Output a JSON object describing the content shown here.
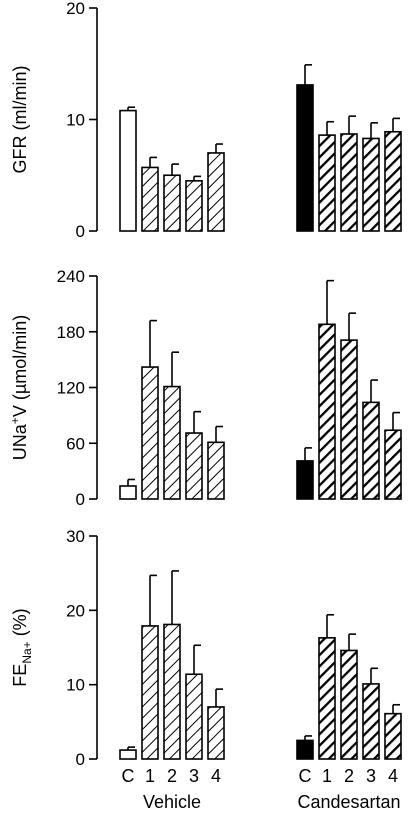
{
  "colors": {
    "axis": "#000000",
    "filled": "#000000",
    "open": "#ffffff"
  },
  "chart_data": {
    "type": "bar",
    "categories": [
      "C",
      "1",
      "2",
      "3",
      "4"
    ],
    "groups": [
      {
        "label": "Vehicle",
        "fills": [
          "open",
          "hatch-light",
          "hatch-light",
          "hatch-light",
          "hatch-light"
        ]
      },
      {
        "label": "Candesartan",
        "fills": [
          "solid",
          "hatch-dark",
          "hatch-dark",
          "hatch-dark",
          "hatch-dark"
        ]
      }
    ],
    "panels": [
      {
        "ylabel_main": "GFR (ml/min)",
        "ylabel_sup": "",
        "ylabel_sub": "",
        "ylabel_tail": "",
        "ylim": [
          0,
          20
        ],
        "ticks": [
          0,
          10,
          20
        ],
        "values": [
          [
            10.8,
            5.7,
            5.0,
            4.5,
            7.0
          ],
          [
            13.1,
            8.6,
            8.7,
            8.3,
            8.9
          ]
        ],
        "errors": [
          [
            0.3,
            0.9,
            1.0,
            0.4,
            0.8
          ],
          [
            1.8,
            1.2,
            1.6,
            1.4,
            1.2
          ]
        ]
      },
      {
        "ylabel_main": "UNa",
        "ylabel_sup": "+",
        "ylabel_sub": "",
        "ylabel_tail": "V (µmol/min)",
        "ylim": [
          0,
          240
        ],
        "ticks": [
          0,
          60,
          120,
          180,
          240
        ],
        "values": [
          [
            14,
            142,
            121,
            71,
            61
          ],
          [
            41,
            188,
            171,
            104,
            74
          ]
        ],
        "errors": [
          [
            7,
            50,
            37,
            23,
            17
          ],
          [
            14,
            47,
            29,
            24,
            19
          ]
        ]
      },
      {
        "ylabel_main": "FE",
        "ylabel_sup": "",
        "ylabel_sub": "Na+",
        "ylabel_tail": " (%)",
        "ylim": [
          0,
          30
        ],
        "ticks": [
          0,
          10,
          20,
          30
        ],
        "values": [
          [
            1.2,
            17.9,
            18.1,
            11.4,
            7.0
          ],
          [
            2.5,
            16.3,
            14.6,
            10.1,
            6.1
          ]
        ],
        "errors": [
          [
            0.4,
            6.8,
            7.2,
            3.9,
            2.4
          ],
          [
            0.6,
            3.1,
            2.2,
            2.1,
            1.2
          ]
        ]
      }
    ]
  }
}
